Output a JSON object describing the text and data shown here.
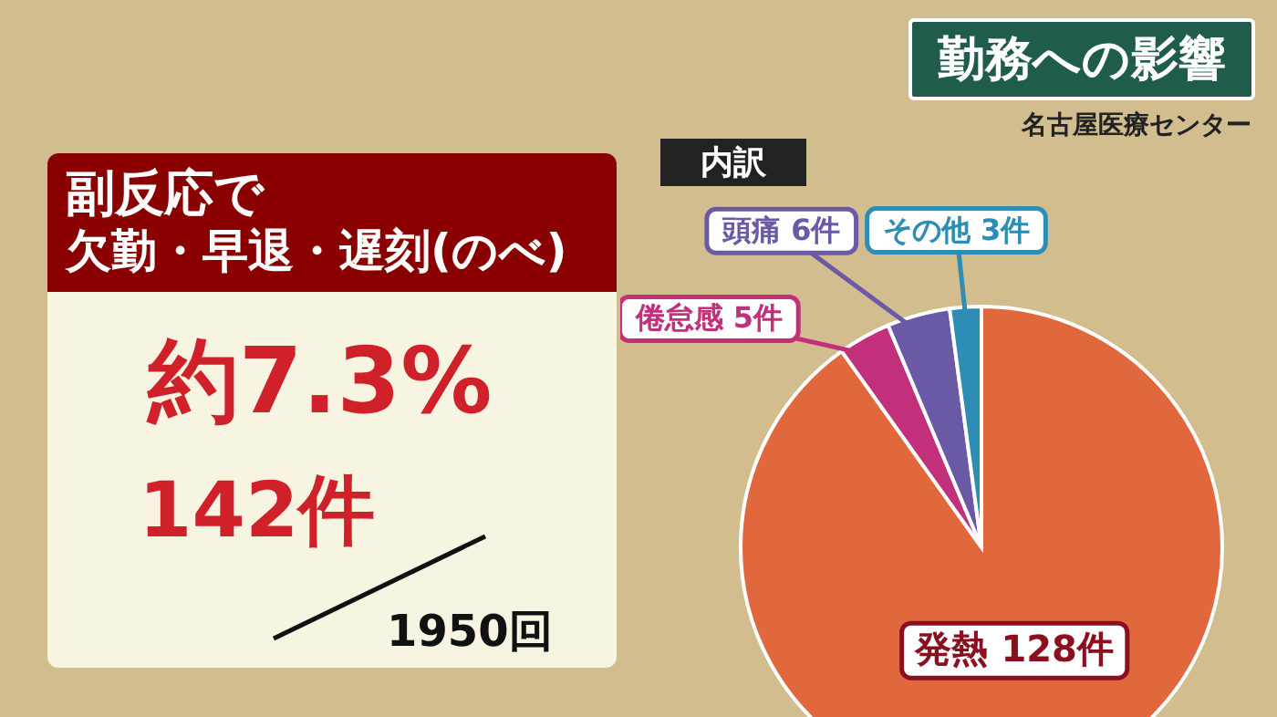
{
  "chart_data": [
    {
      "type": "other",
      "title": "副反応で",
      "subtitle": "欠勤・早退・遅刻(のべ)",
      "annotations": [
        "約7.3%",
        "142件",
        "1950回"
      ]
    },
    {
      "type": "pie",
      "title": "勤務への影響",
      "subtitle": "名古屋医療センター",
      "annotations": [
        "内訳"
      ],
      "categories": [
        "発熱",
        "倦怠感",
        "頭痛",
        "その他"
      ],
      "values": [
        128,
        5,
        6,
        3
      ],
      "value_labels": [
        "128件",
        "5件",
        "6件",
        "3件"
      ],
      "colors": [
        "#e0683c",
        "#c2307c",
        "#6a5aa6",
        "#2d8db4"
      ]
    }
  ]
}
